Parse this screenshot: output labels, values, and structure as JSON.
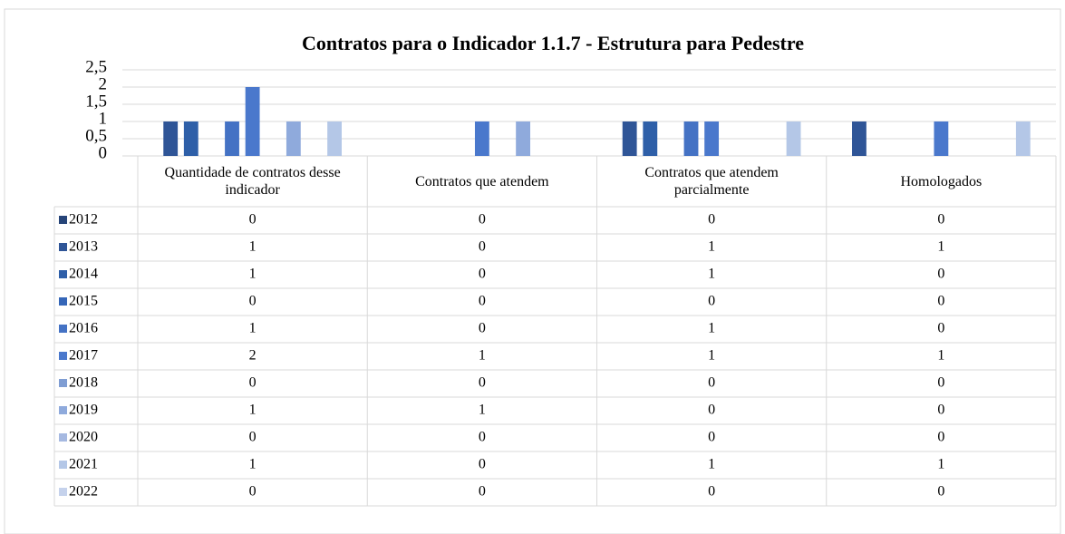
{
  "chart_data": {
    "type": "bar",
    "title": "Contratos para o Indicador 1.1.7 - Estrutura para Pedestre",
    "categories": [
      "Quantidade de contratos desse indicador",
      "Contratos que atendem",
      "Contratos que atendem parcialmente",
      "Homologados"
    ],
    "series": [
      {
        "name": "2012",
        "color": "#264478",
        "values": [
          0,
          0,
          0,
          0
        ]
      },
      {
        "name": "2013",
        "color": "#2f5597",
        "values": [
          1,
          0,
          1,
          1
        ]
      },
      {
        "name": "2014",
        "color": "#2e5fa8",
        "values": [
          1,
          0,
          1,
          0
        ]
      },
      {
        "name": "2015",
        "color": "#3566b8",
        "values": [
          0,
          0,
          0,
          0
        ]
      },
      {
        "name": "2016",
        "color": "#4472c4",
        "values": [
          1,
          0,
          1,
          0
        ]
      },
      {
        "name": "2017",
        "color": "#4a78cc",
        "values": [
          2,
          1,
          1,
          1
        ]
      },
      {
        "name": "2018",
        "color": "#7f9dd3",
        "values": [
          0,
          0,
          0,
          0
        ]
      },
      {
        "name": "2019",
        "color": "#8faadc",
        "values": [
          1,
          1,
          0,
          0
        ]
      },
      {
        "name": "2020",
        "color": "#a6b9e1",
        "values": [
          0,
          0,
          0,
          0
        ]
      },
      {
        "name": "2021",
        "color": "#b4c7e7",
        "values": [
          1,
          0,
          1,
          1
        ]
      },
      {
        "name": "2022",
        "color": "#c5d2ec",
        "values": [
          0,
          0,
          0,
          0
        ]
      }
    ],
    "ylim": [
      0,
      2.5
    ],
    "yticks": [
      0,
      {
        "value": 0.5,
        "label": "0,5"
      },
      1,
      {
        "value": 1.5,
        "label": "1,5"
      },
      2,
      {
        "value": 2.5,
        "label": "2,5"
      }
    ],
    "grid": true
  }
}
